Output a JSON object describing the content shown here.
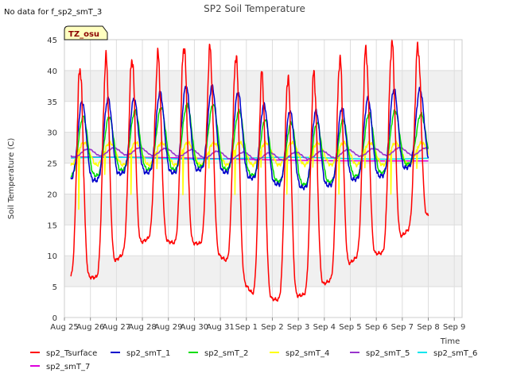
{
  "chart_data": {
    "type": "line",
    "title": "SP2 Soil Temperature",
    "note": "No data for f_sp2_smT_3",
    "badge": "TZ_osu",
    "xlabel": "Time",
    "ylabel": "Soil Temperature (C)",
    "ylim": [
      0,
      45
    ],
    "yticks": [
      0,
      5,
      10,
      15,
      20,
      25,
      30,
      35,
      40,
      45
    ],
    "xlim": [
      0,
      15.3
    ],
    "xtick_positions": [
      0,
      1,
      2,
      3,
      4,
      5,
      6,
      7,
      8,
      9,
      10,
      11,
      12,
      13,
      14,
      15
    ],
    "xtick_labels": [
      "Aug 25",
      "Aug 26",
      "Aug 27",
      "Aug 28",
      "Aug 29",
      "Aug 30",
      "Aug 31",
      "Sep 1",
      "Sep 2",
      "Sep 3",
      "Sep 4",
      "Sep 5",
      "Sep 6",
      "Sep 7",
      "Sep 8",
      "Sep 9"
    ],
    "grid": true,
    "legend_position": "bottom",
    "daily_extremes": {
      "days": [
        0,
        1,
        2,
        3,
        4,
        5,
        6,
        7,
        8,
        9,
        10,
        11,
        12,
        13,
        14
      ],
      "sp2_Tsurface_min": [
        6.5,
        6.5,
        10.5,
        13,
        12,
        12,
        9,
        3.5,
        2.8,
        3.8,
        6.2,
        10,
        10.5,
        14.5,
        17.5
      ],
      "sp2_Tsurface_max": [
        40.5,
        42,
        42,
        42.5,
        44,
        43.5,
        42.5,
        39.5,
        39,
        39.5,
        42,
        43.5,
        44.5,
        44,
        44
      ],
      "sp2_smT_1_min": [
        22.5,
        22.2,
        23.5,
        23.5,
        23.5,
        24,
        23.5,
        22.5,
        21.5,
        21,
        21.5,
        22.5,
        23,
        24.5,
        25
      ],
      "sp2_smT_1_max": [
        35,
        35.5,
        35.5,
        36.5,
        37.5,
        37.5,
        36.5,
        34.5,
        33.5,
        33.5,
        34,
        35.5,
        37,
        37,
        36
      ],
      "sp2_smT_2_min": [
        23,
        23,
        24,
        24,
        24,
        24.5,
        24,
        23,
        22,
        21.5,
        22,
        23,
        23.5,
        25,
        25.5
      ],
      "sp2_smT_2_max": [
        32.5,
        32.5,
        33.5,
        34,
        34.5,
        34.5,
        33.5,
        32,
        31.5,
        31.5,
        32,
        33,
        33.5,
        33,
        33.5
      ]
    },
    "series": [
      {
        "name": "sp2_Tsurface",
        "color": "#ff0000",
        "width": 1.5
      },
      {
        "name": "sp2_smT_1",
        "color": "#0000cc",
        "width": 1.5
      },
      {
        "name": "sp2_smT_2",
        "color": "#00dd00",
        "width": 1.5
      },
      {
        "name": "sp2_smT_4",
        "color": "#ffff00",
        "width": 1.5
      },
      {
        "name": "sp2_smT_5",
        "color": "#9933cc",
        "width": 1.5
      },
      {
        "name": "sp2_smT_6",
        "color": "#00e5ee",
        "width": 1.5
      },
      {
        "name": "sp2_smT_7",
        "color": "#dd00dd",
        "width": 1.5
      }
    ],
    "smT_4_range": [
      17.5,
      29.5
    ],
    "smT_5_range": [
      25,
      28
    ],
    "smT_6_value": 25.8,
    "smT_7_value": 26
  }
}
